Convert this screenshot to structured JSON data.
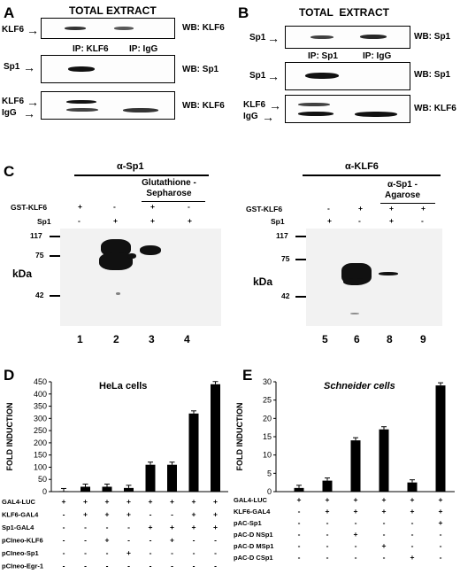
{
  "panel_a": {
    "letter": "A",
    "title": "TOTAL EXTRACT",
    "row1_left": "KLF6",
    "row1_right": "WB: KLF6",
    "ip_left": "IP: KLF6",
    "ip_right": "IP: IgG",
    "row2_left": "Sp1",
    "row2_right": "WB: Sp1",
    "row3_left_a": "KLF6",
    "row3_left_b": "IgG",
    "row3_right": "WB: KLF6"
  },
  "panel_b": {
    "letter": "B",
    "title": "TOTAL  EXTRACT",
    "row1_left": "Sp1",
    "row1_right": "WB: Sp1",
    "ip_left": "IP: Sp1",
    "ip_right": "IP: IgG",
    "row2_left": "Sp1",
    "row2_right": "WB: Sp1",
    "row3_left_a": "KLF6",
    "row3_left_b": "IgG",
    "row3_right": "WB: KLF6"
  },
  "panel_c": {
    "letter": "C",
    "left": {
      "antibody": "α-Sp1",
      "bead": "Glutathione -Sepharose",
      "row_labels": [
        "GST-KLF6",
        "Sp1"
      ],
      "signs_row1": [
        "+",
        "-",
        "+",
        "-"
      ],
      "signs_row2": [
        "-",
        "+",
        "+",
        "+"
      ],
      "markers": [
        "117",
        "75",
        "42"
      ],
      "unit": "kDa",
      "lanes": [
        "1",
        "2",
        "3",
        "4"
      ]
    },
    "right": {
      "antibody": "α-KLF6",
      "bead": "α-Sp1 -Agarose",
      "row_labels": [
        "GST-KLF6",
        "Sp1"
      ],
      "signs_row1": [
        "-",
        "+",
        "+",
        "+"
      ],
      "signs_row2": [
        "+",
        "-",
        "+",
        "-"
      ],
      "markers": [
        "117",
        "75",
        "42"
      ],
      "unit": "kDa",
      "lanes": [
        "5",
        "6",
        "8",
        "9"
      ]
    }
  },
  "panel_d": {
    "letter": "D",
    "title": "HeLa cells",
    "ylabel": "FOLD INDUCTION",
    "row_labels": [
      "GAL4-LUC",
      "KLF6-GAL4",
      "Sp1-GAL4",
      "pCIneo-KLF6",
      "pCIneo-Sp1",
      "pCIneo-Egr-1"
    ],
    "signs": [
      [
        "+",
        "+",
        "+",
        "+",
        "+",
        "+",
        "+",
        "+"
      ],
      [
        "-",
        "+",
        "+",
        "+",
        "-",
        "-",
        "+",
        "+"
      ],
      [
        "-",
        "-",
        "-",
        "-",
        "+",
        "+",
        "+",
        "+"
      ],
      [
        "-",
        "-",
        "+",
        "-",
        "-",
        "+",
        "-",
        "-"
      ],
      [
        "-",
        "-",
        "-",
        "+",
        "-",
        "-",
        "-",
        "-"
      ],
      [
        "-",
        "-",
        "-",
        "-",
        "-",
        "-",
        "-",
        "-"
      ]
    ]
  },
  "panel_e": {
    "letter": "E",
    "title": "Schneider cells",
    "ylabel": "FOLD INDUCTION",
    "row_labels": [
      "GAL4-LUC",
      "KLF6-GAL4",
      "pAC-Sp1",
      "pAC-D NSp1",
      "pAC-D MSp1",
      "pAC-D CSp1"
    ],
    "signs": [
      [
        "+",
        "+",
        "+",
        "+",
        "+",
        "+"
      ],
      [
        "-",
        "+",
        "+",
        "+",
        "+",
        "+"
      ],
      [
        "-",
        "-",
        "-",
        "-",
        "-",
        "+"
      ],
      [
        "-",
        "-",
        "+",
        "-",
        "-",
        "-"
      ],
      [
        "-",
        "-",
        "-",
        "+",
        "-",
        "-"
      ],
      [
        "-",
        "-",
        "-",
        "-",
        "+",
        "-"
      ]
    ]
  },
  "chart_data": [
    {
      "type": "bar",
      "title": "HeLa cells",
      "ylabel": "FOLD INDUCTION",
      "categories": [
        "1",
        "2",
        "3",
        "4",
        "5",
        "6",
        "7",
        "8"
      ],
      "values": [
        2,
        20,
        20,
        15,
        110,
        110,
        320,
        440
      ],
      "ylim": [
        0,
        450
      ],
      "yticks": [
        0,
        50,
        100,
        150,
        200,
        250,
        300,
        350,
        400,
        450
      ]
    },
    {
      "type": "bar",
      "title": "Schneider cells",
      "ylabel": "FOLD INDUCTION",
      "categories": [
        "1",
        "2",
        "3",
        "4",
        "5",
        "6"
      ],
      "values": [
        1,
        3,
        14,
        17,
        2.5,
        29
      ],
      "ylim": [
        0,
        30
      ],
      "yticks": [
        0,
        5,
        10,
        15,
        20,
        25,
        30
      ]
    }
  ]
}
